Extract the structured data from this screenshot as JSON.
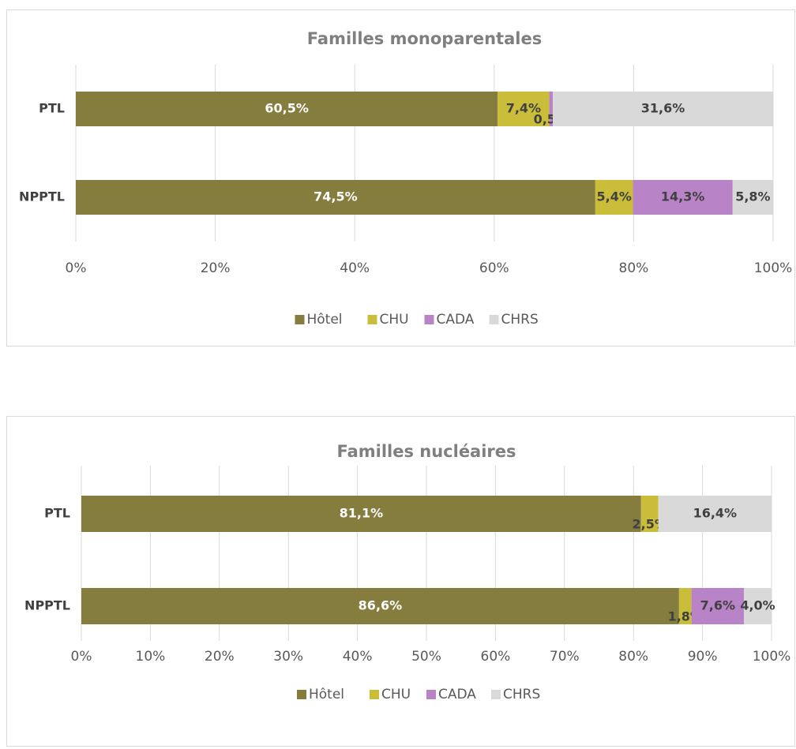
{
  "chart_data": [
    {
      "type": "stacked_bar_horizontal",
      "title": "Familles monoparentales",
      "categories": [
        "PTL",
        "NPPTL"
      ],
      "series": [
        {
          "name": "Hôtel",
          "color": "#857d3e",
          "values": [
            60.5,
            74.5
          ],
          "value_labels": [
            "60,5%",
            "74,5%"
          ]
        },
        {
          "name": "CHU",
          "color": "#c9bd3a",
          "values": [
            7.4,
            5.4
          ],
          "value_labels": [
            "7,4%",
            "5,4%"
          ]
        },
        {
          "name": "CADA",
          "color": "#b983c8",
          "values": [
            0.5,
            14.3
          ],
          "value_labels": [
            "0,5%",
            "14,3%"
          ]
        },
        {
          "name": "CHRS",
          "color": "#d9d9d9",
          "values": [
            31.6,
            5.8
          ],
          "value_labels": [
            "31,6%",
            "5,8%"
          ]
        }
      ],
      "xlim": [
        0,
        100
      ],
      "xticks": [
        {
          "value": 0,
          "label": "0%"
        },
        {
          "value": 20,
          "label": "20%"
        },
        {
          "value": 40,
          "label": "40%"
        },
        {
          "value": 60,
          "label": "60%"
        },
        {
          "value": 80,
          "label": "80%"
        },
        {
          "value": 100,
          "label": "100%"
        }
      ],
      "grid": true,
      "legend": "bottom"
    },
    {
      "type": "stacked_bar_horizontal",
      "title": "Familles nucléaires",
      "categories": [
        "PTL",
        "NPPTL"
      ],
      "series": [
        {
          "name": "Hôtel",
          "color": "#857d3e",
          "values": [
            81.1,
            86.6
          ],
          "value_labels": [
            "81,1%",
            "86,6%"
          ]
        },
        {
          "name": "CHU",
          "color": "#c9bd3a",
          "values": [
            2.5,
            1.8
          ],
          "value_labels": [
            "2,5%",
            "1,8%"
          ]
        },
        {
          "name": "CADA",
          "color": "#b983c8",
          "values": [
            null,
            7.6
          ],
          "value_labels": [
            null,
            "7,6%"
          ]
        },
        {
          "name": "CHRS",
          "color": "#d9d9d9",
          "values": [
            16.4,
            4.0
          ],
          "value_labels": [
            "16,4%",
            "4,0%"
          ]
        }
      ],
      "xlim": [
        0,
        100
      ],
      "xticks": [
        {
          "value": 0,
          "label": "0%"
        },
        {
          "value": 10,
          "label": "10%"
        },
        {
          "value": 20,
          "label": "20%"
        },
        {
          "value": 30,
          "label": "30%"
        },
        {
          "value": 40,
          "label": "40%"
        },
        {
          "value": 50,
          "label": "50%"
        },
        {
          "value": 60,
          "label": "60%"
        },
        {
          "value": 70,
          "label": "70%"
        },
        {
          "value": 80,
          "label": "80%"
        },
        {
          "value": 90,
          "label": "90%"
        },
        {
          "value": 100,
          "label": "100%"
        }
      ],
      "grid": true,
      "legend": "bottom"
    }
  ]
}
